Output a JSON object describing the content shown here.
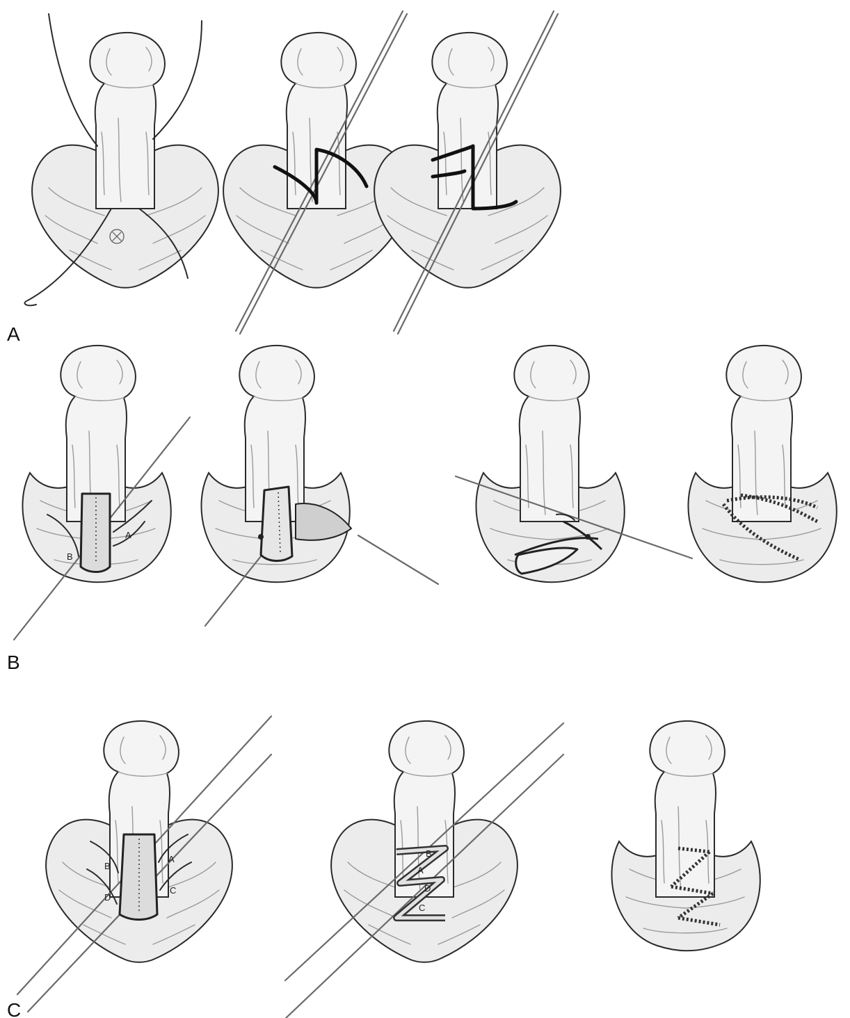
{
  "figure": {
    "panels": [
      {
        "id": "A",
        "label": "A"
      },
      {
        "id": "B",
        "label": "B"
      },
      {
        "id": "C",
        "label": "C"
      }
    ]
  },
  "flap_letters": {
    "b1": [
      "A",
      "B"
    ],
    "c1": [
      "B",
      "A",
      "D",
      "C"
    ],
    "c2": [
      "B",
      "A",
      "D",
      "C"
    ]
  }
}
